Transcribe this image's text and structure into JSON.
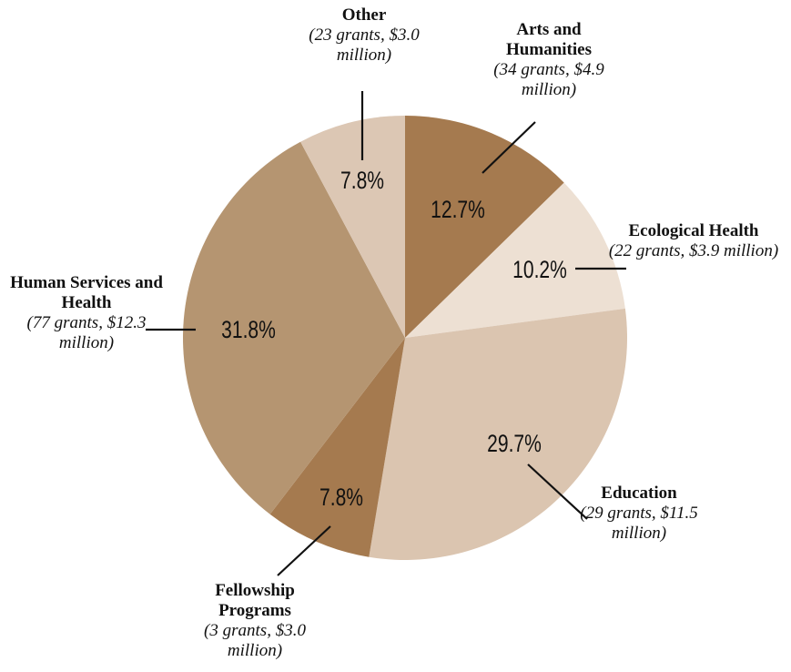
{
  "chart_data": {
    "type": "pie",
    "categories": [
      "Arts and Humanities",
      "Ecological Health",
      "Education",
      "Fellowship Programs",
      "Human Services and Health",
      "Other"
    ],
    "values": [
      12.7,
      10.2,
      29.7,
      7.8,
      31.8,
      7.8
    ],
    "value_labels": [
      "12.7%",
      "10.2%",
      "29.7%",
      "7.8%",
      "31.8%",
      "7.8%"
    ],
    "notes": [
      "(34 grants, $4.9 million)",
      "(22 grants, $3.9 million)",
      "(29 grants, $11.5 million)",
      "(3 grants, $3.0 million)",
      "(77 grants, $12.3 million)",
      "(23 grants, $3.0 million)"
    ],
    "colors": [
      "#a57a4f",
      "#ede0d3",
      "#dbc5b0",
      "#a57a4f",
      "#b59571",
      "#dcc7b4"
    ]
  }
}
